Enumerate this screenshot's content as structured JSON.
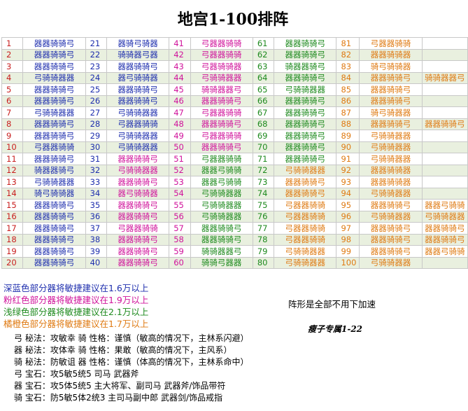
{
  "title": "地宫1-100排阵",
  "rows": [
    [
      [
        "1",
        "red",
        "器器骑骑弓",
        "navy"
      ],
      [
        "21",
        "navy",
        "器骑弓骑器",
        "navy"
      ],
      [
        "41",
        "pink",
        "弓器器骑骑",
        "pink"
      ],
      [
        "61",
        "green",
        "器器骑骑弓",
        "green"
      ],
      [
        "81",
        "orange",
        "弓器器骑骑",
        "orange"
      ],
      [
        "",
        ""
      ]
    ],
    [
      [
        "2",
        "red",
        "器器骑骑弓",
        "navy"
      ],
      [
        "22",
        "navy",
        "骑骑器弓器",
        "navy"
      ],
      [
        "42",
        "pink",
        "弓器器骑骑",
        "pink"
      ],
      [
        "62",
        "green",
        "器器骑骑弓",
        "green"
      ],
      [
        "82",
        "orange",
        "器器骑骑器",
        "orange"
      ],
      [
        "",
        ""
      ]
    ],
    [
      [
        "3",
        "red",
        "器器骑骑弓",
        "navy"
      ],
      [
        "23",
        "navy",
        "器器骑骑弓",
        "navy"
      ],
      [
        "43",
        "pink",
        "弓器骑骑器",
        "pink"
      ],
      [
        "63",
        "green",
        "骑器器骑弓",
        "green"
      ],
      [
        "83",
        "orange",
        "骑弓骑骑器",
        "orange"
      ],
      [
        "",
        ""
      ]
    ],
    [
      [
        "4",
        "red",
        "弓骑骑器器",
        "navy"
      ],
      [
        "24",
        "navy",
        "器弓骑骑器",
        "navy"
      ],
      [
        "44",
        "pink",
        "弓骑骑器器",
        "pink"
      ],
      [
        "64",
        "green",
        "器器骑骑弓",
        "green"
      ],
      [
        "84",
        "orange",
        "器器骑骑弓",
        "orange"
      ],
      [
        "骑骑器器弓",
        "orange"
      ]
    ],
    [
      [
        "5",
        "red",
        "器器骑骑弓",
        "navy"
      ],
      [
        "25",
        "navy",
        "器器骑骑弓",
        "navy"
      ],
      [
        "45",
        "pink",
        "骑骑器器弓",
        "pink"
      ],
      [
        "65",
        "green",
        "弓骑骑器器",
        "green"
      ],
      [
        "85",
        "orange",
        "器器骑骑弓",
        "orange"
      ],
      [
        "",
        ""
      ]
    ],
    [
      [
        "6",
        "red",
        "器器骑骑弓",
        "navy"
      ],
      [
        "26",
        "navy",
        "器器骑骑弓",
        "navy"
      ],
      [
        "46",
        "pink",
        "器器骑骑弓",
        "pink"
      ],
      [
        "66",
        "green",
        "器器骑骑弓",
        "green"
      ],
      [
        "86",
        "orange",
        "器器骑骑弓",
        "orange"
      ],
      [
        "",
        ""
      ]
    ],
    [
      [
        "7",
        "red",
        "弓骑骑器器",
        "navy"
      ],
      [
        "27",
        "navy",
        "弓骑骑器器",
        "navy"
      ],
      [
        "47",
        "pink",
        "弓器器骑骑",
        "pink"
      ],
      [
        "67",
        "green",
        "器器骑骑弓",
        "green"
      ],
      [
        "87",
        "orange",
        "骑弓骑器器",
        "orange"
      ],
      [
        "",
        ""
      ]
    ],
    [
      [
        "8",
        "red",
        "器器骑骑弓",
        "navy"
      ],
      [
        "28",
        "navy",
        "弓器器骑骑",
        "navy"
      ],
      [
        "48",
        "pink",
        "器器骑骑弓",
        "pink"
      ],
      [
        "68",
        "green",
        "器器骑骑弓",
        "green"
      ],
      [
        "88",
        "orange",
        "器器骑骑弓",
        "orange"
      ],
      [
        "器器骑骑弓",
        "orange"
      ]
    ],
    [
      [
        "9",
        "red",
        "器器骑骑弓",
        "navy"
      ],
      [
        "29",
        "navy",
        "弓骑骑器器",
        "navy"
      ],
      [
        "49",
        "pink",
        "弓器器骑骑",
        "pink"
      ],
      [
        "69",
        "green",
        "器器骑骑弓",
        "green"
      ],
      [
        "89",
        "orange",
        "弓骑骑器器",
        "orange"
      ],
      [
        "",
        ""
      ]
    ],
    [
      [
        "10",
        "red",
        "弓器器骑骑",
        "navy"
      ],
      [
        "30",
        "navy",
        "弓骑骑器器",
        "navy"
      ],
      [
        "50",
        "pink",
        "器器骑骑弓",
        "pink"
      ],
      [
        "70",
        "green",
        "器器骑骑弓",
        "green"
      ],
      [
        "90",
        "orange",
        "弓骑骑器器",
        "orange"
      ],
      [
        "",
        ""
      ]
    ],
    [
      [
        "11",
        "red",
        "器器骑骑弓",
        "navy"
      ],
      [
        "31",
        "navy",
        "器器骑骑弓",
        "pink"
      ],
      [
        "51",
        "pink",
        "弓器器骑骑",
        "green"
      ],
      [
        "71",
        "green",
        "器器骑骑弓",
        "green"
      ],
      [
        "91",
        "orange",
        "弓骑骑器器",
        "orange"
      ],
      [
        "",
        ""
      ]
    ],
    [
      [
        "12",
        "red",
        "骑器器骑弓",
        "navy"
      ],
      [
        "32",
        "navy",
        "弓骑骑器器",
        "pink"
      ],
      [
        "52",
        "pink",
        "器器弓骑骑",
        "green"
      ],
      [
        "72",
        "green",
        "弓骑骑器器",
        "orange"
      ],
      [
        "92",
        "orange",
        "器器骑骑器",
        "orange"
      ],
      [
        "",
        ""
      ]
    ],
    [
      [
        "13",
        "red",
        "弓骑骑器器",
        "navy"
      ],
      [
        "33",
        "navy",
        "器器骑骑弓",
        "pink"
      ],
      [
        "53",
        "pink",
        "器器弓骑骑",
        "green"
      ],
      [
        "73",
        "green",
        "器器骑骑弓",
        "orange"
      ],
      [
        "93",
        "orange",
        "器器骑骑器",
        "orange"
      ],
      [
        "",
        ""
      ]
    ],
    [
      [
        "14",
        "red",
        "骑弓骑骑器",
        "navy"
      ],
      [
        "34",
        "navy",
        "器弓骑骑器",
        "pink"
      ],
      [
        "54",
        "pink",
        "弓骑骑器器",
        "green"
      ],
      [
        "74",
        "green",
        "器器骑骑弓",
        "orange"
      ],
      [
        "94",
        "orange",
        "弓骑骑器器",
        "orange"
      ],
      [
        "",
        ""
      ]
    ],
    [
      [
        "15",
        "red",
        "器器骑骑弓",
        "navy"
      ],
      [
        "35",
        "navy",
        "器器骑骑弓",
        "pink"
      ],
      [
        "55",
        "pink",
        "弓骑骑器器",
        "green"
      ],
      [
        "75",
        "green",
        "弓器器骑骑",
        "orange"
      ],
      [
        "95",
        "orange",
        "器器骑骑弓",
        "orange"
      ],
      [
        "器器弓骑骑",
        "orange"
      ]
    ],
    [
      [
        "16",
        "red",
        "器器骑骑弓",
        "navy"
      ],
      [
        "36",
        "navy",
        "器器骑骑弓",
        "pink"
      ],
      [
        "56",
        "pink",
        "弓骑骑器器",
        "green"
      ],
      [
        "76",
        "green",
        "弓器器骑骑",
        "orange"
      ],
      [
        "96",
        "orange",
        "弓骑骑器器",
        "orange"
      ],
      [
        "弓骑骑器器",
        "orange"
      ]
    ],
    [
      [
        "17",
        "red",
        "器器骑骑弓",
        "navy"
      ],
      [
        "37",
        "navy",
        "弓器器骑骑",
        "pink"
      ],
      [
        "57",
        "pink",
        "器器骑骑弓",
        "green"
      ],
      [
        "77",
        "green",
        "弓器器骑骑",
        "orange"
      ],
      [
        "97",
        "orange",
        "器器骑骑弓",
        "orange"
      ],
      [
        "器器骑骑弓",
        "orange"
      ]
    ],
    [
      [
        "18",
        "red",
        "器器骑骑弓",
        "navy"
      ],
      [
        "38",
        "navy",
        "器器骑骑弓",
        "pink"
      ],
      [
        "58",
        "pink",
        "器器骑骑弓",
        "green"
      ],
      [
        "78",
        "green",
        "弓器器骑骑",
        "orange"
      ],
      [
        "98",
        "orange",
        "器器骑骑弓",
        "orange"
      ],
      [
        "器器骑骑弓",
        "orange"
      ]
    ],
    [
      [
        "19",
        "red",
        "器器骑骑弓",
        "navy"
      ],
      [
        "39",
        "navy",
        "器器骑骑弓",
        "pink"
      ],
      [
        "59",
        "pink",
        "骑骑器器弓",
        "green"
      ],
      [
        "79",
        "green",
        "弓骑骑器器",
        "orange"
      ],
      [
        "99",
        "orange",
        "器器骑骑弓",
        "orange"
      ],
      [
        "器器弓骑骑",
        "orange"
      ]
    ],
    [
      [
        "20",
        "red",
        "器器骑骑弓",
        "navy"
      ],
      [
        "40",
        "navy",
        "器器骑骑弓",
        "pink"
      ],
      [
        "60",
        "pink",
        "骑骑弓器器",
        "green"
      ],
      [
        "80",
        "green",
        "弓骑骑器器",
        "orange"
      ],
      [
        "100",
        "orange",
        "弓骑骑器器",
        "orange"
      ],
      [
        "",
        ""
      ]
    ]
  ],
  "legend": [
    {
      "text": "深蓝色部分器将敏捷建议在1.6万以上",
      "color": "navy"
    },
    {
      "text": "粉红色部分器将敏捷建议在1.9万以上",
      "color": "pink"
    },
    {
      "text": "浅绿色部分器将敏捷建议在2.1万以上",
      "color": "green"
    },
    {
      "text": "橘橙色部分器将敏捷建议在1.7万以上",
      "color": "orange"
    }
  ],
  "note": "阵形是全部不用下加速",
  "credit": "瘦子专属1-22",
  "tips": [
    "弓 秘法：攻敏幸   骑 性格：谨慎（敏高的情况下，主林系闪避）",
    "器 秘法：攻体幸   骑 性格：果敢（敏高的情况下，主风系）",
    "骑 秘法：防敏诅   器 性格：谨慎（体高的情况下，主林系命中）",
    "弓 宝石：攻5敏5统5    司马   武器斧",
    "器 宝石：攻5体5统5 主大将军、副司马 武器斧/饰品带符",
    "骑 宝石：防5敏5体2统3 主司马副中郎  武器剑/饰品戒指"
  ],
  "colors": {
    "navy": "#1f2fae",
    "pink": "#d0139b",
    "green": "#1e8a1e",
    "orange": "#df7a12",
    "red": "#c81e1e"
  }
}
